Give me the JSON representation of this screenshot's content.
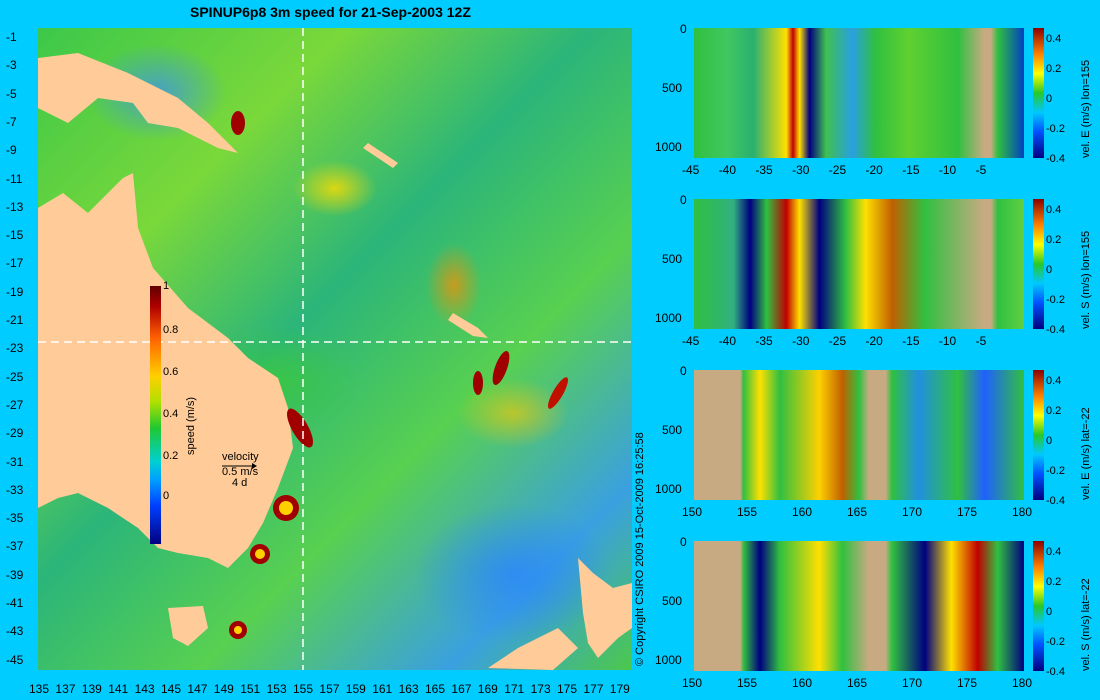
{
  "title": "SPINUP6p8 3m speed for 21-Sep-2003 12Z",
  "copyright": "© Copyright CSIRO 2009   15-Oct-2009 16:25:58",
  "map": {
    "lat_ticks": [
      "-1",
      "-3",
      "-5",
      "-7",
      "-9",
      "-11",
      "-13",
      "-15",
      "-17",
      "-19",
      "-21",
      "-23",
      "-25",
      "-27",
      "-29",
      "-31",
      "-33",
      "-35",
      "-37",
      "-39",
      "-41",
      "-43",
      "-45"
    ],
    "lon_ticks": [
      "135",
      "137",
      "139",
      "141",
      "143",
      "145",
      "147",
      "149",
      "151",
      "153",
      "155",
      "157",
      "159",
      "161",
      "163",
      "165",
      "167",
      "169",
      "171",
      "173",
      "175",
      "177",
      "179"
    ],
    "colorbar": {
      "label": "speed (m/s)",
      "ticks": [
        "1",
        "0.8",
        "0.6",
        "0.4",
        "0.2",
        "0"
      ]
    },
    "velocity_key": {
      "title": "velocity",
      "value": "0.5 m/s",
      "period": "4 d"
    }
  },
  "panels": [
    {
      "label": "vel. E (m/s) lon=155",
      "x_ticks": [
        "-45",
        "-40",
        "-35",
        "-30",
        "-25",
        "-20",
        "-15",
        "-10",
        "-5"
      ],
      "y_ticks": [
        "0",
        "500",
        "1000"
      ],
      "cbar_ticks": [
        "0.4",
        "0.2",
        "0",
        "-0.2",
        "-0.4"
      ]
    },
    {
      "label": "vel. S (m/s) lon=155",
      "x_ticks": [
        "-45",
        "-40",
        "-35",
        "-30",
        "-25",
        "-20",
        "-15",
        "-10",
        "-5"
      ],
      "y_ticks": [
        "0",
        "500",
        "1000"
      ],
      "cbar_ticks": [
        "0.4",
        "0.2",
        "0",
        "-0.2",
        "-0.4"
      ]
    },
    {
      "label": "vel. E (m/s) lat=-22",
      "x_ticks": [
        "150",
        "155",
        "160",
        "165",
        "170",
        "175",
        "180"
      ],
      "y_ticks": [
        "0",
        "500",
        "1000"
      ],
      "cbar_ticks": [
        "0.4",
        "0.2",
        "0",
        "-0.2",
        "-0.4"
      ]
    },
    {
      "label": "vel. S (m/s) lat=-22",
      "x_ticks": [
        "150",
        "155",
        "160",
        "165",
        "170",
        "175",
        "180"
      ],
      "y_ticks": [
        "0",
        "500",
        "1000"
      ],
      "cbar_ticks": [
        "0.4",
        "0.2",
        "0",
        "-0.2",
        "-0.4"
      ]
    }
  ],
  "colors": {
    "background": "#00ccff",
    "land": "#ffcc99",
    "section_land": "#c8aa82"
  }
}
